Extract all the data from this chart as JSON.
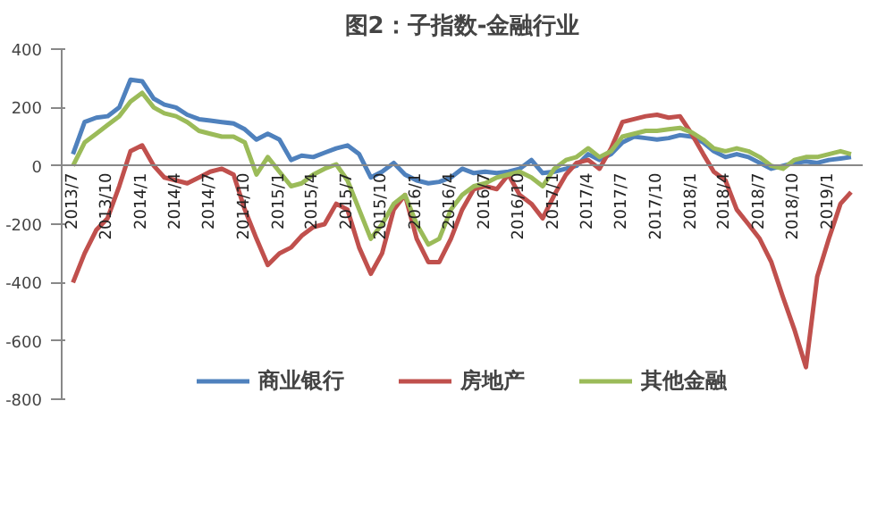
{
  "chart_data": {
    "type": "line",
    "title": "图2：子指数-金融行业",
    "x": [
      "2013-07",
      "2013-08",
      "2013-09",
      "2013-10",
      "2013-11",
      "2013-12",
      "2014-01",
      "2014-02",
      "2014-03",
      "2014-04",
      "2014-05",
      "2014-06",
      "2014-07",
      "2014-08",
      "2014-09",
      "2014-10",
      "2014-11",
      "2014-12",
      "2015-01",
      "2015-02",
      "2015-03",
      "2015-04",
      "2015-05",
      "2015-06",
      "2015-07",
      "2015-08",
      "2015-09",
      "2015-10",
      "2015-11",
      "2015-12",
      "2016-01",
      "2016-02",
      "2016-03",
      "2016-04",
      "2016-05",
      "2016-06",
      "2016-07",
      "2016-08",
      "2016-09",
      "2016-10",
      "2016-11",
      "2016-12",
      "2017-01",
      "2017-02",
      "2017-03",
      "2017-04",
      "2017-05",
      "2017-06",
      "2017-07",
      "2017-08",
      "2017-09",
      "2017-10",
      "2017-11",
      "2017-12",
      "2018-01",
      "2018-02",
      "2018-03",
      "2018-04",
      "2018-05",
      "2018-06",
      "2018-07",
      "2018-08",
      "2018-09",
      "2018-10",
      "2018-11",
      "2018-12",
      "2019-01",
      "2019-02",
      "2019-03"
    ],
    "series": [
      {
        "name": "商业银行",
        "color": "#4f81bd",
        "values": [
          40,
          150,
          165,
          170,
          200,
          295,
          290,
          230,
          210,
          200,
          175,
          160,
          155,
          150,
          145,
          125,
          90,
          110,
          90,
          20,
          35,
          30,
          45,
          60,
          70,
          40,
          -40,
          -20,
          10,
          -30,
          -50,
          -60,
          -55,
          -40,
          -10,
          -25,
          -20,
          -25,
          -20,
          -10,
          20,
          -25,
          -20,
          -10,
          0,
          40,
          20,
          40,
          80,
          100,
          95,
          90,
          95,
          105,
          100,
          80,
          50,
          30,
          40,
          30,
          10,
          -10,
          0,
          10,
          15,
          10,
          20,
          25,
          30
        ]
      },
      {
        "name": "房地产",
        "color": "#c0504d",
        "values": [
          -400,
          -300,
          -220,
          -180,
          -70,
          50,
          70,
          0,
          -40,
          -50,
          -60,
          -40,
          -20,
          -10,
          -30,
          -150,
          -250,
          -340,
          -300,
          -280,
          -240,
          -210,
          -200,
          -130,
          -150,
          -280,
          -370,
          -300,
          -150,
          -100,
          -250,
          -330,
          -330,
          -250,
          -150,
          -80,
          -70,
          -80,
          -30,
          -100,
          -130,
          -180,
          -100,
          -30,
          10,
          20,
          -10,
          60,
          150,
          160,
          170,
          175,
          165,
          170,
          110,
          40,
          -20,
          -50,
          -150,
          -200,
          -250,
          -330,
          -450,
          -560,
          -690,
          -380,
          -250,
          -130,
          -90
        ]
      },
      {
        "name": "其他金融",
        "color": "#9bbb59",
        "values": [
          0,
          80,
          110,
          140,
          170,
          220,
          250,
          200,
          180,
          170,
          150,
          120,
          110,
          100,
          100,
          80,
          -30,
          30,
          -20,
          -70,
          -60,
          -30,
          -10,
          5,
          -50,
          -150,
          -250,
          -200,
          -130,
          -100,
          -200,
          -270,
          -250,
          -150,
          -100,
          -70,
          -60,
          -40,
          -30,
          -20,
          -40,
          -70,
          -10,
          20,
          30,
          60,
          30,
          50,
          100,
          110,
          120,
          120,
          125,
          130,
          115,
          90,
          60,
          50,
          60,
          50,
          30,
          0,
          -10,
          20,
          30,
          30,
          40,
          50,
          40
        ]
      }
    ],
    "xlim": [
      "2013-06",
      "2019-04"
    ],
    "xticks": [
      {
        "value": "2013-07",
        "label": "2013/7"
      },
      {
        "value": "2013-10",
        "label": "2013/10"
      },
      {
        "value": "2014-01",
        "label": "2014/1"
      },
      {
        "value": "2014-04",
        "label": "2014/4"
      },
      {
        "value": "2014-07",
        "label": "2014/7"
      },
      {
        "value": "2014-10",
        "label": "2014/10"
      },
      {
        "value": "2015-01",
        "label": "2015/1"
      },
      {
        "value": "2015-04",
        "label": "2015/4"
      },
      {
        "value": "2015-07",
        "label": "2015/7"
      },
      {
        "value": "2015-10",
        "label": "2015/10"
      },
      {
        "value": "2016-01",
        "label": "2016/1"
      },
      {
        "value": "2016-04",
        "label": "2016/4"
      },
      {
        "value": "2016-07",
        "label": "2016/7"
      },
      {
        "value": "2016-10",
        "label": "2016/10"
      },
      {
        "value": "2017-01",
        "label": "2017/1"
      },
      {
        "value": "2017-04",
        "label": "2017/4"
      },
      {
        "value": "2017-07",
        "label": "2017/7"
      },
      {
        "value": "2017-10",
        "label": "2017/10"
      },
      {
        "value": "2018-01",
        "label": "2018/1"
      },
      {
        "value": "2018-04",
        "label": "2018/4"
      },
      {
        "value": "2018-07",
        "label": "2018/7"
      },
      {
        "value": "2018-10",
        "label": "2018/10"
      },
      {
        "value": "2019-01",
        "label": "2019/1"
      }
    ],
    "ylim": [
      -800,
      400
    ],
    "yticks": [
      -800,
      -600,
      -400,
      -200,
      0,
      200,
      400
    ],
    "grid": false,
    "legend": "bottom",
    "line_style": "solid",
    "marker": "none"
  }
}
